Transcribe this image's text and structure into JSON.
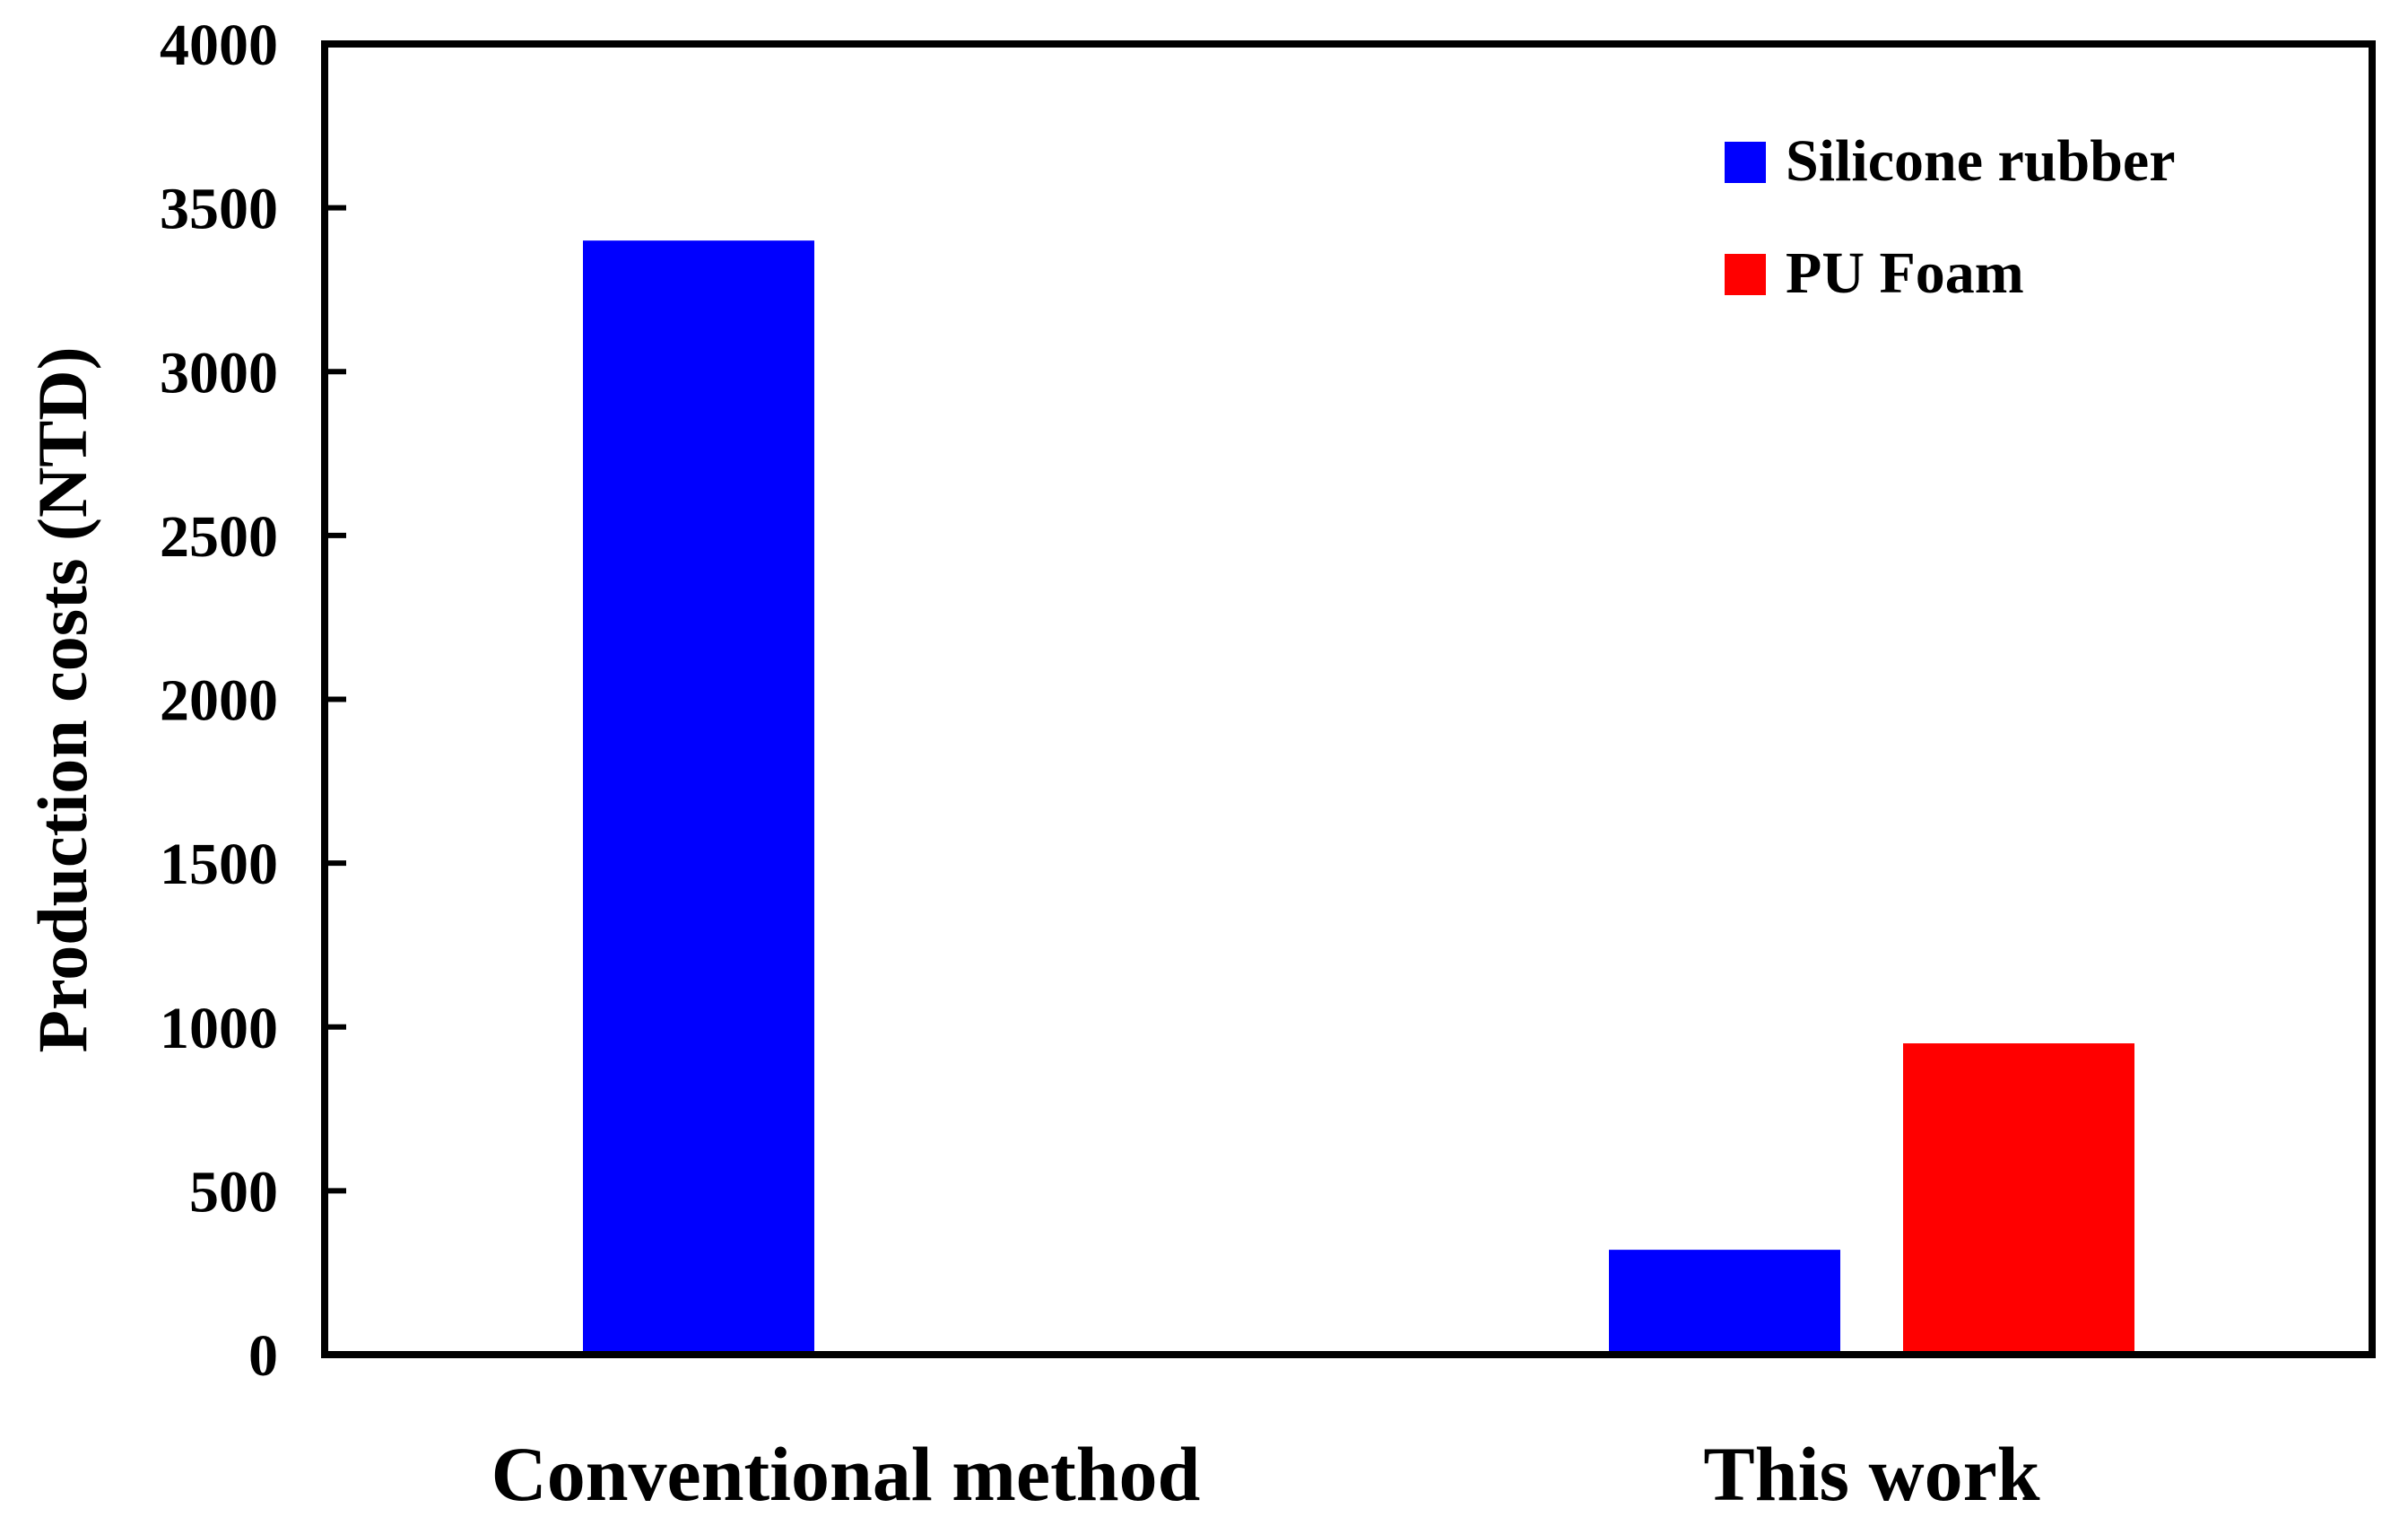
{
  "chart_data": {
    "type": "bar",
    "title": "",
    "xlabel": "",
    "ylabel": "Production costs (NTD)",
    "categories": [
      "Conventional method",
      "This work"
    ],
    "series": [
      {
        "name": "Silicone rubber",
        "color": "#0000ff",
        "values": [
          3400,
          320
        ]
      },
      {
        "name": "PU Foam",
        "color": "#ff0000",
        "values": [
          null,
          950
        ]
      }
    ],
    "ylim": [
      0,
      4000
    ],
    "yticks": [
      0,
      500,
      1000,
      1500,
      2000,
      2500,
      3000,
      3500,
      4000
    ],
    "ytick_labels": [
      "0",
      "500",
      "1000",
      "1500",
      "2000",
      "2500",
      "3000",
      "3500",
      "4000"
    ],
    "grid": false,
    "legend_position": "top-right"
  }
}
